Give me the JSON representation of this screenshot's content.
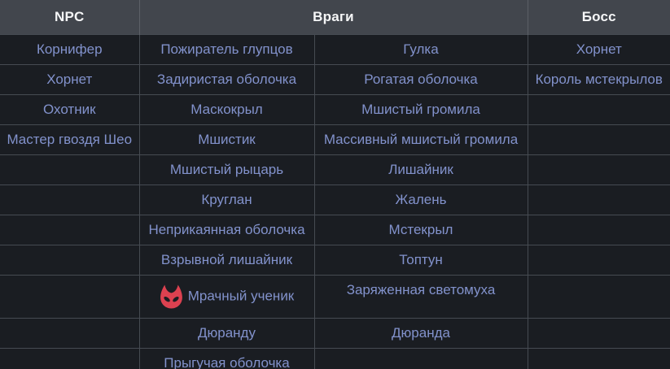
{
  "table": {
    "headers": [
      {
        "label": "NPC",
        "colspan": "1"
      },
      {
        "label": "Враги",
        "colspan": "2"
      },
      {
        "label": "Босс",
        "colspan": "1"
      }
    ],
    "rows": [
      [
        "Корнифер",
        "Пожиратель глупцов",
        "Гулка",
        "Хорнет"
      ],
      [
        "Хорнет",
        "Задиристая оболочка",
        "Рогатая оболочка",
        "Король мстекрылов"
      ],
      [
        "Охотник",
        "Маскокрыл",
        "Мшистый громила",
        ""
      ],
      [
        "Мастер гвоздя Шео",
        "Мшистик",
        "Массивный мшистый громила",
        ""
      ],
      [
        "",
        "Мшистый рыцарь",
        "Лишайник",
        ""
      ],
      [
        "",
        "Круглан",
        "Жалень",
        ""
      ],
      [
        "",
        "Неприкаянная оболочка",
        "Мстекрыл",
        ""
      ],
      [
        "",
        "Взрывной лишайник",
        "Топтун",
        ""
      ],
      [
        "",
        {
          "icon": "grimm-troupe-icon",
          "text": "Мрачный ученик"
        },
        "Заряженная светомуха",
        ""
      ],
      [
        "",
        "Дюранду",
        "Дюранда",
        ""
      ],
      [
        "",
        "Прыгучая оболочка",
        "",
        ""
      ]
    ]
  },
  "colors": {
    "header_bg": "#42464d",
    "header_text": "#f5f6f7",
    "header_border": "#5c6067",
    "row_bg": "#1a1d22",
    "border": "#464b52",
    "link": "#8292cc",
    "icon_red": "#dc4150"
  }
}
